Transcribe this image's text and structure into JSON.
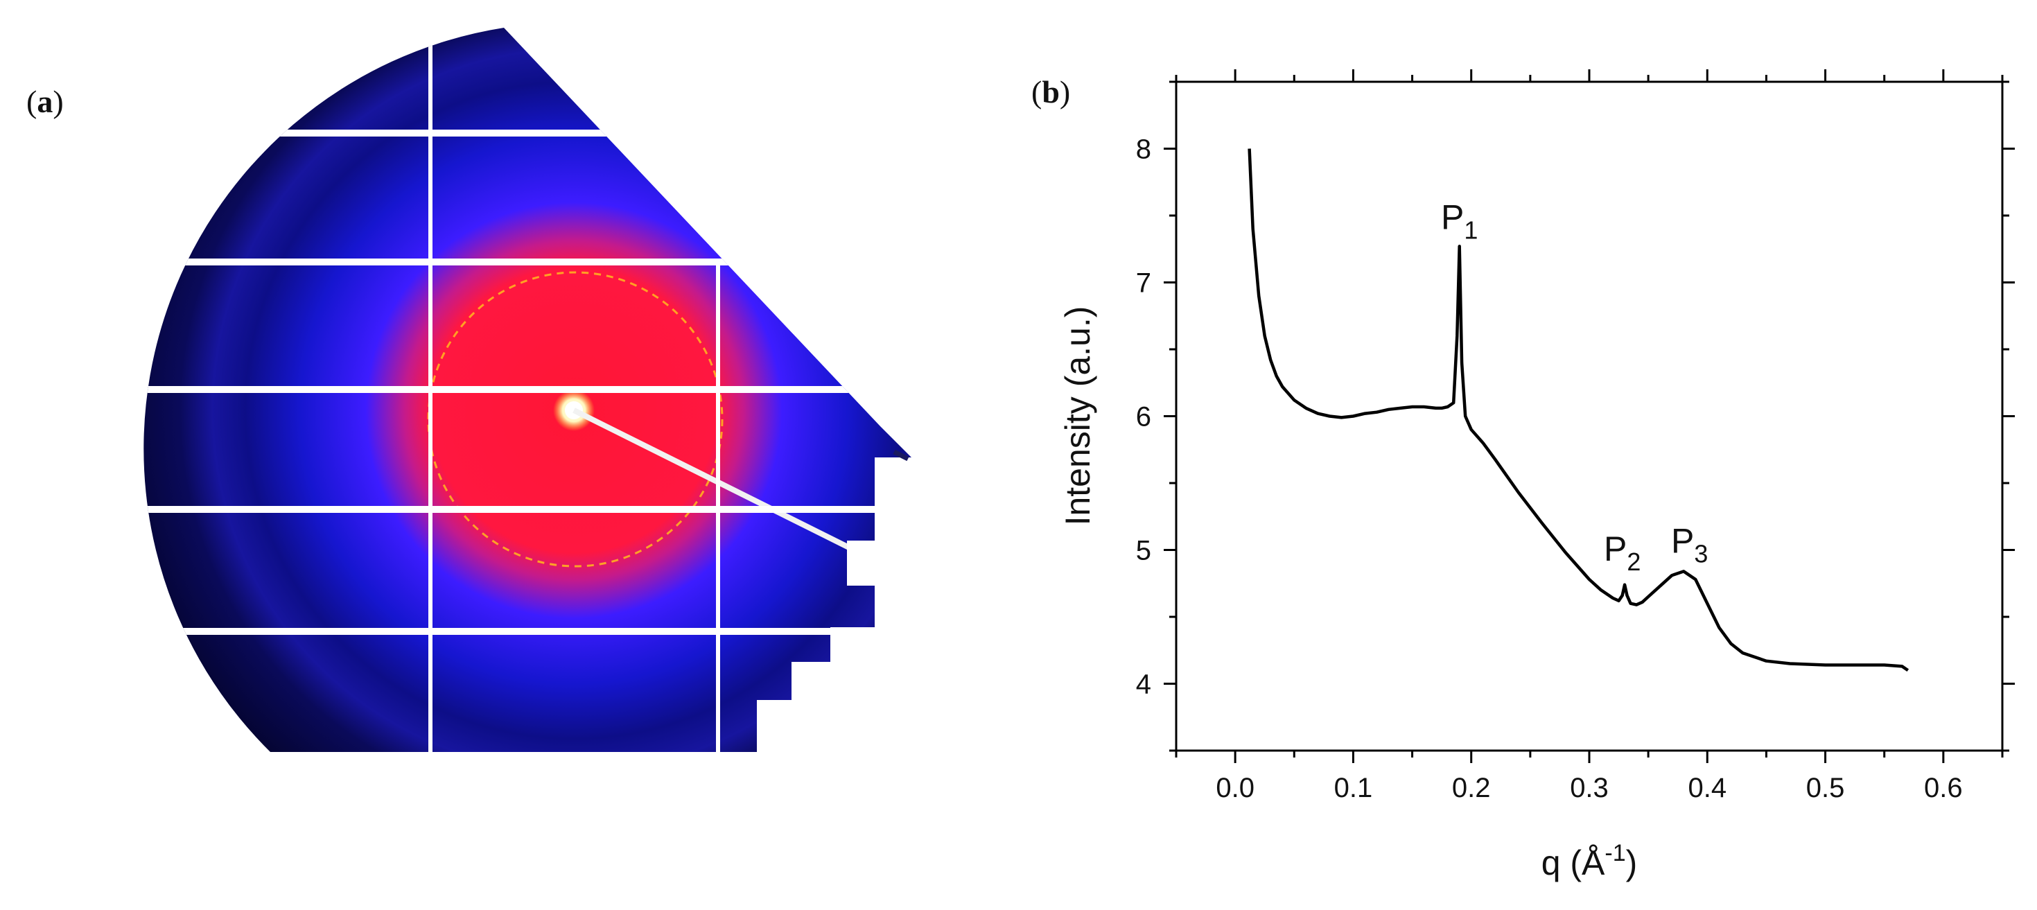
{
  "panel_a": {
    "label_open": "(",
    "label_letter": "a",
    "label_close": ")"
  },
  "panel_b": {
    "label_open": "(",
    "label_letter": "b",
    "label_close": ")"
  },
  "chart_data": {
    "type": "line",
    "title": "",
    "xlabel": "q (Å⁻¹)",
    "xlabel_parts": {
      "q": "q (Å",
      "sup": "-1",
      "close": ")"
    },
    "ylabel": "Intensity (a.u.)",
    "xlim": [
      -0.05,
      0.65
    ],
    "ylim": [
      3.5,
      8.5
    ],
    "xticks": [
      0.0,
      0.1,
      0.2,
      0.3,
      0.4,
      0.5,
      0.6
    ],
    "xtick_labels": [
      "0.0",
      "0.1",
      "0.2",
      "0.3",
      "0.4",
      "0.5",
      "0.6"
    ],
    "yticks": [
      4,
      5,
      6,
      7,
      8
    ],
    "ytick_labels": [
      "4",
      "5",
      "6",
      "7",
      "8"
    ],
    "grid": false,
    "legend": "none",
    "line_color": "#000000",
    "series": [
      {
        "x": [
          0.012,
          0.015,
          0.02,
          0.025,
          0.03,
          0.035,
          0.04,
          0.05,
          0.06,
          0.07,
          0.08,
          0.09,
          0.1,
          0.11,
          0.12,
          0.13,
          0.14,
          0.15,
          0.16,
          0.17,
          0.175,
          0.18,
          0.185,
          0.188,
          0.19,
          0.192,
          0.195,
          0.2,
          0.21,
          0.22,
          0.24,
          0.26,
          0.28,
          0.3,
          0.31,
          0.32,
          0.325,
          0.328,
          0.33,
          0.332,
          0.335,
          0.34,
          0.345,
          0.35,
          0.36,
          0.37,
          0.38,
          0.39,
          0.4,
          0.41,
          0.42,
          0.43,
          0.45,
          0.47,
          0.5,
          0.53,
          0.55,
          0.565,
          0.57
        ],
        "y": [
          8.0,
          7.4,
          6.9,
          6.6,
          6.42,
          6.3,
          6.22,
          6.12,
          6.06,
          6.02,
          6.0,
          5.99,
          6.0,
          6.02,
          6.03,
          6.05,
          6.06,
          6.07,
          6.07,
          6.06,
          6.06,
          6.07,
          6.1,
          6.6,
          7.27,
          6.4,
          6.0,
          5.9,
          5.8,
          5.68,
          5.43,
          5.2,
          4.98,
          4.78,
          4.7,
          4.64,
          4.62,
          4.66,
          4.74,
          4.66,
          4.6,
          4.59,
          4.61,
          4.65,
          4.73,
          4.81,
          4.84,
          4.78,
          4.6,
          4.42,
          4.3,
          4.23,
          4.17,
          4.15,
          4.14,
          4.14,
          4.14,
          4.13,
          4.1
        ]
      }
    ],
    "annotations": [
      {
        "main": "P",
        "sub": "1",
        "x": 0.19,
        "y": 7.4
      },
      {
        "main": "P",
        "sub": "2",
        "x": 0.328,
        "y": 4.92
      },
      {
        "main": "P",
        "sub": "3",
        "x": 0.385,
        "y": 4.98
      }
    ]
  }
}
